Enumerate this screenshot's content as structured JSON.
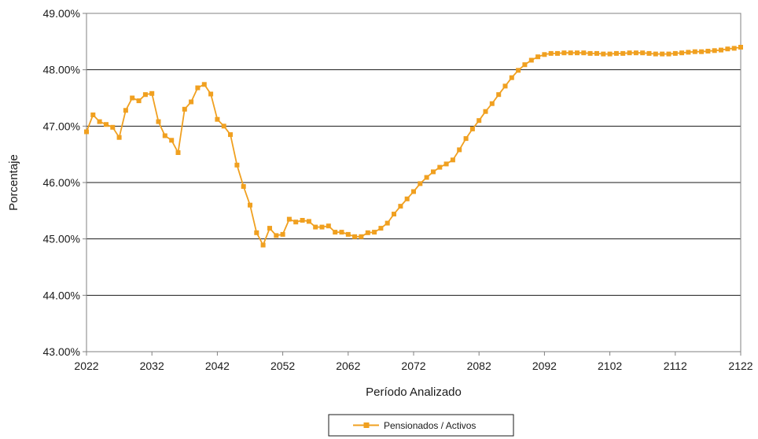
{
  "chart_data": {
    "type": "line",
    "xlabel": "Período Analizado",
    "ylabel": "Porcentaje",
    "xlim": [
      2022,
      2122
    ],
    "ylim": [
      43,
      49
    ],
    "x_ticks": [
      "2022",
      "2032",
      "2042",
      "2052",
      "2062",
      "2072",
      "2082",
      "2092",
      "2102",
      "2112",
      "2122"
    ],
    "y_ticks": [
      "43.00%",
      "44.00%",
      "45.00%",
      "46.00%",
      "47.00%",
      "48.00%",
      "49.00%"
    ],
    "grid": true,
    "legend_position": "bottom-center",
    "series": [
      {
        "name": "Pensionados / Activos",
        "color": "#f0a020",
        "marker": "square",
        "x": [
          2022,
          2023,
          2024,
          2025,
          2026,
          2027,
          2028,
          2029,
          2030,
          2031,
          2032,
          2033,
          2034,
          2035,
          2036,
          2037,
          2038,
          2039,
          2040,
          2041,
          2042,
          2043,
          2044,
          2045,
          2046,
          2047,
          2048,
          2049,
          2050,
          2051,
          2052,
          2053,
          2054,
          2055,
          2056,
          2057,
          2058,
          2059,
          2060,
          2061,
          2062,
          2063,
          2064,
          2065,
          2066,
          2067,
          2068,
          2069,
          2070,
          2071,
          2072,
          2073,
          2074,
          2075,
          2076,
          2077,
          2078,
          2079,
          2080,
          2081,
          2082,
          2083,
          2084,
          2085,
          2086,
          2087,
          2088,
          2089,
          2090,
          2091,
          2092,
          2093,
          2094,
          2095,
          2096,
          2097,
          2098,
          2099,
          2100,
          2101,
          2102,
          2103,
          2104,
          2105,
          2106,
          2107,
          2108,
          2109,
          2110,
          2111,
          2112,
          2113,
          2114,
          2115,
          2116,
          2117,
          2118,
          2119,
          2120,
          2121,
          2122
        ],
        "y": [
          46.9,
          47.2,
          47.08,
          47.03,
          46.98,
          46.8,
          47.28,
          47.5,
          47.45,
          47.56,
          47.58,
          47.08,
          46.83,
          46.75,
          46.53,
          47.3,
          47.43,
          47.68,
          47.74,
          47.57,
          47.12,
          47.0,
          46.85,
          46.31,
          45.93,
          45.6,
          45.11,
          44.89,
          45.19,
          45.06,
          45.08,
          45.35,
          45.3,
          45.33,
          45.31,
          45.21,
          45.21,
          45.23,
          45.12,
          45.12,
          45.08,
          45.04,
          45.04,
          45.11,
          45.12,
          45.19,
          45.28,
          45.44,
          45.58,
          45.71,
          45.84,
          45.98,
          46.09,
          46.19,
          46.27,
          46.33,
          46.4,
          46.58,
          46.78,
          46.95,
          47.1,
          47.26,
          47.4,
          47.56,
          47.71,
          47.86,
          47.99,
          48.09,
          48.17,
          48.23,
          48.27,
          48.29,
          48.29,
          48.3,
          48.3,
          48.3,
          48.3,
          48.29,
          48.29,
          48.28,
          48.28,
          48.29,
          48.29,
          48.3,
          48.3,
          48.3,
          48.29,
          48.28,
          48.28,
          48.28,
          48.29,
          48.3,
          48.31,
          48.32,
          48.32,
          48.33,
          48.34,
          48.35,
          48.37,
          48.38,
          48.4
        ]
      }
    ]
  }
}
